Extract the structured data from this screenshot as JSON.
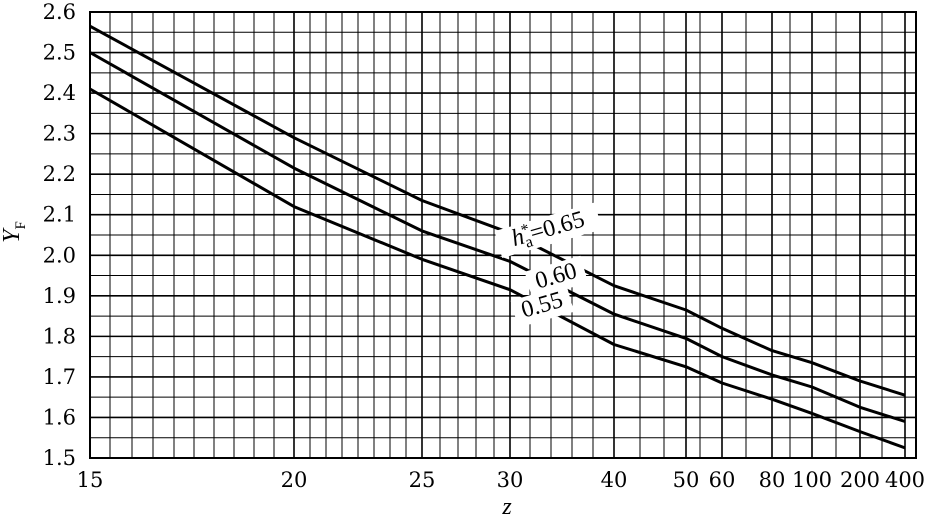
{
  "chart_data": {
    "type": "line",
    "xlabel": "z",
    "ylabel": "Y",
    "ylabel_sub": "F",
    "ylim": [
      1.5,
      2.6
    ],
    "y_ticks": [
      "1.5",
      "1.6",
      "1.7",
      "1.8",
      "1.9",
      "2.0",
      "2.1",
      "2.2",
      "2.3",
      "2.4",
      "2.5",
      "2.6"
    ],
    "x_ticks": [
      "15",
      "20",
      "25",
      "30",
      "40",
      "50",
      "60",
      "80",
      "100",
      "200",
      "400"
    ],
    "grid": true,
    "series": [
      {
        "name": "h_a*=0.65",
        "label_prefix": "h",
        "label_sub": "a",
        "label_sup": "*",
        "label_suffix": "=0.65",
        "x": [
          "15",
          "20",
          "25",
          "30",
          "40",
          "50",
          "60",
          "80",
          "100",
          "200",
          "400"
        ],
        "values": [
          2.565,
          2.29,
          2.135,
          2.055,
          1.925,
          1.865,
          1.82,
          1.765,
          1.735,
          1.69,
          1.655
        ]
      },
      {
        "name": "0.60",
        "label_suffix": "0.60",
        "x": [
          "15",
          "20",
          "25",
          "30",
          "40",
          "50",
          "60",
          "80",
          "100",
          "200",
          "400"
        ],
        "values": [
          2.5,
          2.215,
          2.06,
          1.985,
          1.855,
          1.795,
          1.75,
          1.705,
          1.675,
          1.625,
          1.59
        ]
      },
      {
        "name": "0.55",
        "label_suffix": "0.55",
        "x": [
          "15",
          "20",
          "25",
          "30",
          "40",
          "50",
          "60",
          "80",
          "100",
          "200",
          "400"
        ],
        "values": [
          2.41,
          2.12,
          1.99,
          1.915,
          1.78,
          1.725,
          1.685,
          1.645,
          1.61,
          1.565,
          1.525
        ]
      }
    ]
  }
}
